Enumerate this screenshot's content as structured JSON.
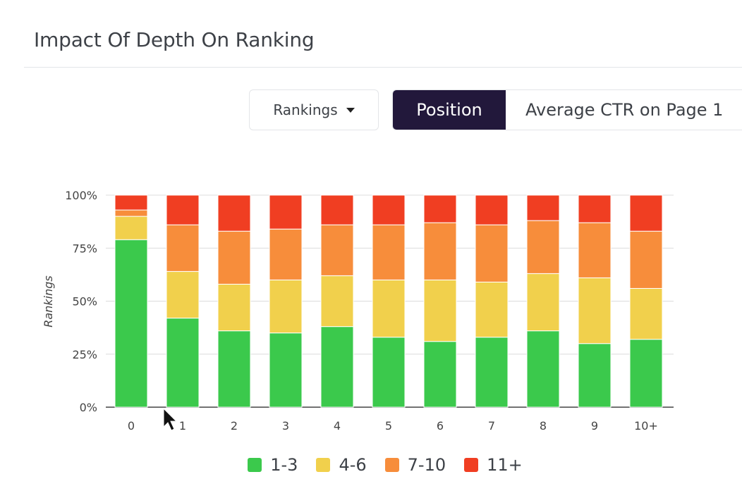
{
  "header": {
    "title": "Impact Of Depth On Ranking"
  },
  "controls": {
    "dropdown_label": "Rankings",
    "toggle": {
      "active": "Position",
      "inactive": "Average CTR on Page 1"
    }
  },
  "colors": {
    "1-3": "#3bc94c",
    "4-6": "#f1d04c",
    "7-10": "#f78d3b",
    "11+": "#f03e22",
    "toggle_active": "#22183b"
  },
  "chart_data": {
    "type": "bar",
    "stacked": true,
    "ylabel": "Rankings",
    "xlabel": "",
    "ylim": [
      0,
      100
    ],
    "yticks": [
      "0%",
      "25%",
      "50%",
      "75%",
      "100%"
    ],
    "categories": [
      "0",
      "1",
      "2",
      "3",
      "4",
      "5",
      "6",
      "7",
      "8",
      "9",
      "10+"
    ],
    "series": [
      {
        "name": "1-3",
        "values": [
          79,
          42,
          36,
          35,
          38,
          33,
          31,
          33,
          36,
          30,
          32
        ]
      },
      {
        "name": "4-6",
        "values": [
          11,
          22,
          22,
          25,
          24,
          27,
          29,
          26,
          27,
          31,
          24
        ]
      },
      {
        "name": "7-10",
        "values": [
          3,
          22,
          25,
          24,
          24,
          26,
          27,
          27,
          25,
          26,
          27
        ]
      },
      {
        "name": "11+",
        "values": [
          7,
          14,
          17,
          16,
          14,
          14,
          13,
          14,
          12,
          13,
          17
        ]
      }
    ],
    "grid": true,
    "legend_position": "bottom-center"
  }
}
